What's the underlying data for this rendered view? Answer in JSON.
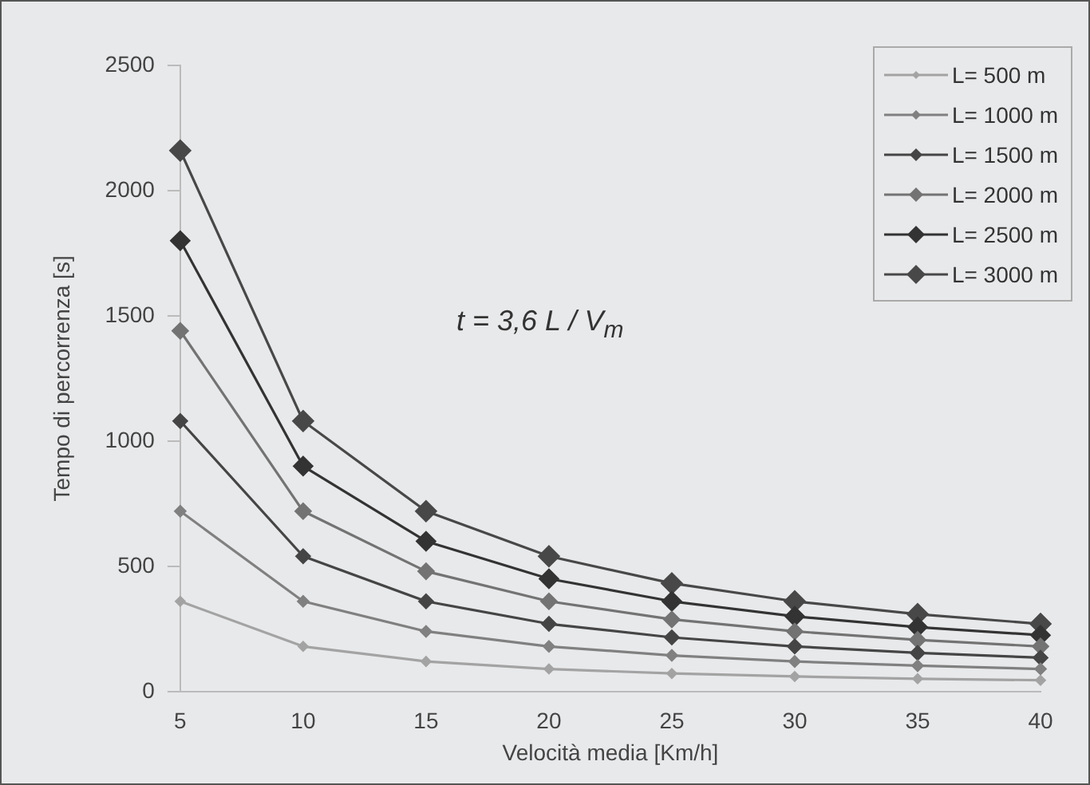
{
  "chart_data": {
    "type": "line",
    "xlabel": "Velocità media [Km/h]",
    "ylabel": "Tempo di percorrenza [s]",
    "categories": [
      "5",
      "10",
      "15",
      "20",
      "25",
      "30",
      "35",
      "40"
    ],
    "ylim": [
      0,
      2500
    ],
    "yticks": [
      0,
      500,
      1000,
      1500,
      2000,
      2500
    ],
    "grid": false,
    "legend": "top right",
    "marker": "diamond",
    "line_style": "solid",
    "annotations": [
      "t = 3,6 L / V$_{m}$"
    ],
    "series": [
      {
        "name": "L= 500 m",
        "color": "#a3a3a3",
        "values": [
          360,
          180,
          120,
          90,
          72,
          60,
          51,
          45
        ]
      },
      {
        "name": "L= 1000 m",
        "color": "#808080",
        "values": [
          720,
          360,
          240,
          180,
          144,
          120,
          103,
          90
        ]
      },
      {
        "name": "L= 1500 m",
        "color": "#454545",
        "values": [
          1080,
          540,
          360,
          270,
          216,
          180,
          154,
          135
        ]
      },
      {
        "name": "L= 2000 m",
        "color": "#737373",
        "values": [
          1440,
          720,
          480,
          360,
          288,
          240,
          206,
          180
        ]
      },
      {
        "name": "L= 2500 m",
        "color": "#333333",
        "values": [
          1800,
          900,
          600,
          450,
          360,
          300,
          257,
          225
        ]
      },
      {
        "name": "L= 3000 m",
        "color": "#484848",
        "values": [
          2160,
          1080,
          720,
          540,
          432,
          360,
          309,
          270
        ]
      }
    ]
  }
}
